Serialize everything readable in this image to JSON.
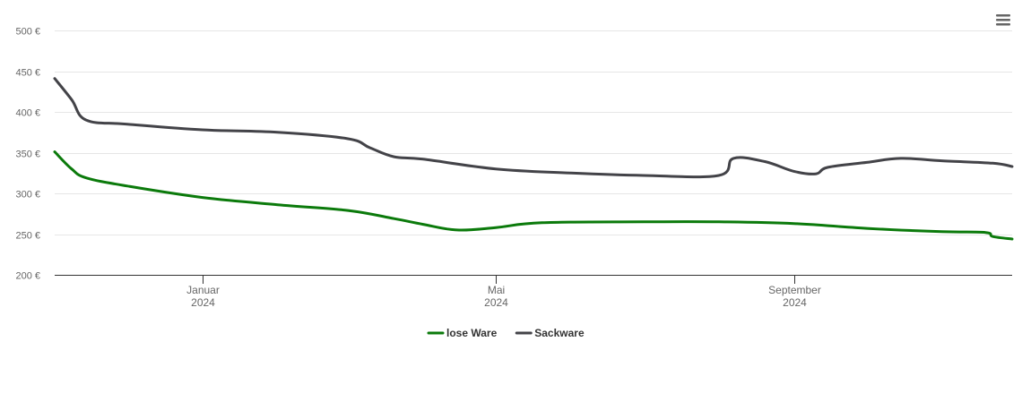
{
  "menu": {
    "icon": "hamburger-menu-icon"
  },
  "chart_data": {
    "type": "line",
    "y_unit_suffix": " €",
    "ylim": [
      200,
      500
    ],
    "y_ticks": [
      {
        "value": 500,
        "label": "500 €"
      },
      {
        "value": 450,
        "label": "450 €"
      },
      {
        "value": 400,
        "label": "400 €"
      },
      {
        "value": 350,
        "label": "350 €"
      },
      {
        "value": 300,
        "label": "300 €"
      },
      {
        "value": 250,
        "label": "250 €"
      },
      {
        "value": 200,
        "label": "200 €"
      }
    ],
    "xlim": [
      "2023-11-01",
      "2024-11-30"
    ],
    "x_ticks": [
      {
        "date": "2024-01-01",
        "label": "Januar",
        "sublabel": "2024"
      },
      {
        "date": "2024-05-01",
        "label": "Mai",
        "sublabel": "2024"
      },
      {
        "date": "2024-09-01",
        "label": "September",
        "sublabel": "2024"
      }
    ],
    "grid": true,
    "legend_position": "bottom-center",
    "series": [
      {
        "name": "lose Ware",
        "color": "#0b7a0b",
        "points": [
          {
            "x": "2023-11-01",
            "y": 351
          },
          {
            "x": "2023-11-08",
            "y": 330
          },
          {
            "x": "2023-11-14",
            "y": 319
          },
          {
            "x": "2023-12-01",
            "y": 309
          },
          {
            "x": "2024-01-01",
            "y": 295
          },
          {
            "x": "2024-02-01",
            "y": 286
          },
          {
            "x": "2024-03-01",
            "y": 279
          },
          {
            "x": "2024-03-20",
            "y": 269
          },
          {
            "x": "2024-04-01",
            "y": 262
          },
          {
            "x": "2024-04-15",
            "y": 255
          },
          {
            "x": "2024-05-01",
            "y": 258
          },
          {
            "x": "2024-05-20",
            "y": 264
          },
          {
            "x": "2024-07-01",
            "y": 265
          },
          {
            "x": "2024-08-01",
            "y": 265
          },
          {
            "x": "2024-09-01",
            "y": 263
          },
          {
            "x": "2024-10-01",
            "y": 257
          },
          {
            "x": "2024-11-01",
            "y": 253
          },
          {
            "x": "2024-11-19",
            "y": 252
          },
          {
            "x": "2024-11-22",
            "y": 247
          },
          {
            "x": "2024-11-30",
            "y": 244
          }
        ]
      },
      {
        "name": "Sackware",
        "color": "#434348",
        "points": [
          {
            "x": "2023-11-01",
            "y": 441
          },
          {
            "x": "2023-11-08",
            "y": 415
          },
          {
            "x": "2023-11-14",
            "y": 390
          },
          {
            "x": "2023-12-01",
            "y": 385
          },
          {
            "x": "2024-01-01",
            "y": 378
          },
          {
            "x": "2024-02-01",
            "y": 375
          },
          {
            "x": "2024-03-01",
            "y": 367
          },
          {
            "x": "2024-03-10",
            "y": 356
          },
          {
            "x": "2024-03-20",
            "y": 345
          },
          {
            "x": "2024-04-01",
            "y": 342
          },
          {
            "x": "2024-05-01",
            "y": 330
          },
          {
            "x": "2024-06-01",
            "y": 325
          },
          {
            "x": "2024-07-01",
            "y": 322
          },
          {
            "x": "2024-08-01",
            "y": 322
          },
          {
            "x": "2024-08-07",
            "y": 343
          },
          {
            "x": "2024-08-20",
            "y": 339
          },
          {
            "x": "2024-09-01",
            "y": 327
          },
          {
            "x": "2024-09-10",
            "y": 324
          },
          {
            "x": "2024-09-15",
            "y": 332
          },
          {
            "x": "2024-10-01",
            "y": 338
          },
          {
            "x": "2024-10-15",
            "y": 343
          },
          {
            "x": "2024-11-01",
            "y": 340
          },
          {
            "x": "2024-11-22",
            "y": 337
          },
          {
            "x": "2024-11-30",
            "y": 333
          }
        ]
      }
    ]
  }
}
